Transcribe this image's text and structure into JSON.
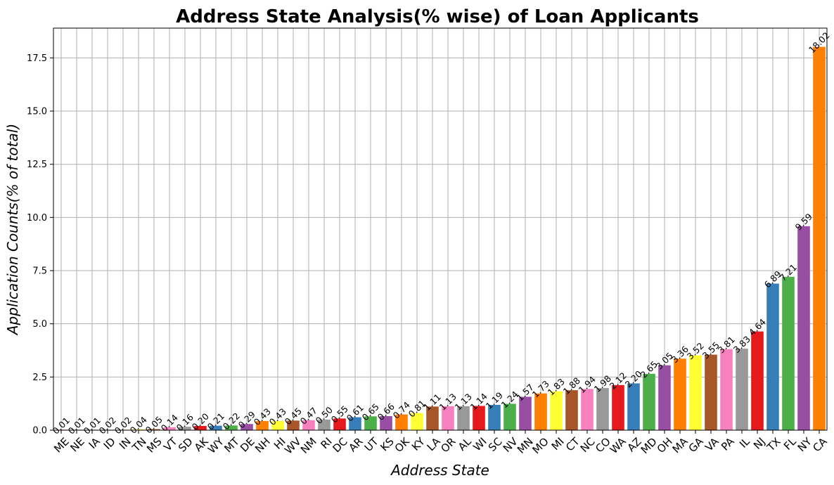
{
  "chart_data": {
    "type": "bar",
    "title": "Address State Analysis(% wise) of Loan Applicants",
    "xlabel": "Address State",
    "ylabel": "Application Counts(% of total)",
    "ylim": [
      0,
      18.9
    ],
    "yticks": [
      "0.0",
      "2.5",
      "5.0",
      "7.5",
      "10.0",
      "12.5",
      "15.0",
      "17.5"
    ],
    "grid": true,
    "categories": [
      "ME",
      "NE",
      "IA",
      "ID",
      "IN",
      "TN",
      "MS",
      "VT",
      "SD",
      "AK",
      "WY",
      "MT",
      "DE",
      "NH",
      "HI",
      "WV",
      "NM",
      "RI",
      "DC",
      "AR",
      "UT",
      "KS",
      "OK",
      "KY",
      "LA",
      "OR",
      "AL",
      "WI",
      "SC",
      "NV",
      "MN",
      "MO",
      "MI",
      "CT",
      "NC",
      "CO",
      "WA",
      "AZ",
      "MD",
      "OH",
      "MA",
      "GA",
      "VA",
      "PA",
      "IL",
      "NJ",
      "TX",
      "FL",
      "NY",
      "CA"
    ],
    "values": [
      0.01,
      0.01,
      0.01,
      0.02,
      0.02,
      0.04,
      0.05,
      0.14,
      0.16,
      0.2,
      0.21,
      0.22,
      0.29,
      0.43,
      0.43,
      0.45,
      0.47,
      0.5,
      0.55,
      0.61,
      0.65,
      0.66,
      0.74,
      0.81,
      1.11,
      1.13,
      1.13,
      1.14,
      1.19,
      1.24,
      1.57,
      1.73,
      1.83,
      1.88,
      1.94,
      1.98,
      2.12,
      2.2,
      2.65,
      3.05,
      3.36,
      3.52,
      3.55,
      3.81,
      3.83,
      4.64,
      6.89,
      7.21,
      9.59,
      18.02
    ],
    "value_labels": [
      "0.01",
      "0.01",
      "0.01",
      "0.02",
      "0.02",
      "0.04",
      "0.05",
      "0.14",
      "0.16",
      "0.20",
      "0.21",
      "0.22",
      "0.29",
      "0.43",
      "0.43",
      "0.45",
      "0.47",
      "0.50",
      "0.55",
      "0.61",
      "0.65",
      "0.66",
      "0.74",
      "0.81",
      "1.11",
      "1.13",
      "1.13",
      "1.14",
      "1.19",
      "1.24",
      "1.57",
      "1.73",
      "1.83",
      "1.88",
      "1.94",
      "1.98",
      "2.12",
      "2.20",
      "2.65",
      "3.05",
      "3.36",
      "3.52",
      "3.55",
      "3.81",
      "3.83",
      "4.64",
      "6.89",
      "7.21",
      "9.59",
      "18.02"
    ],
    "palette": [
      "#e41a1c",
      "#377eb8",
      "#4daf4a",
      "#984ea3",
      "#ff7f00",
      "#ffff33",
      "#a65628",
      "#f781bf",
      "#999999"
    ]
  }
}
